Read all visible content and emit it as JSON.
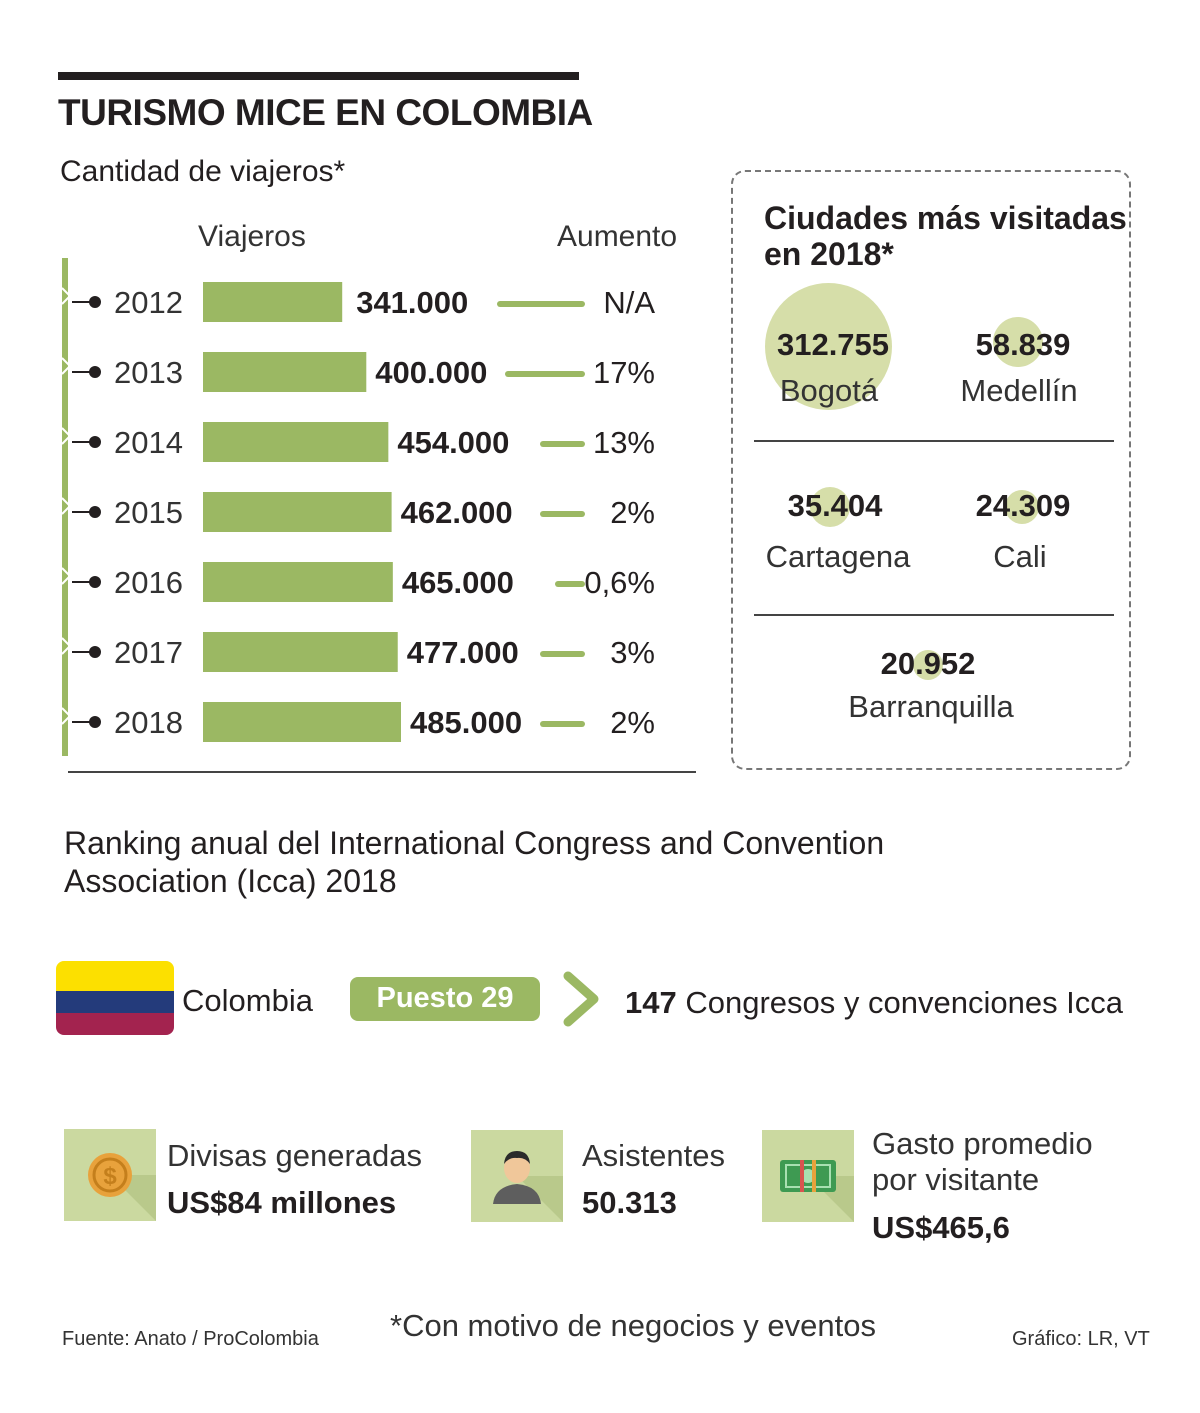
{
  "title": "TURISMO MICE EN COLOMBIA",
  "subtitle": "Cantidad de viajeros*",
  "colors": {
    "bar": "#9bb863",
    "bubble": "#d6dea9",
    "icon_bg": "#cbd9a0",
    "text": "#231f20"
  },
  "chart_data": {
    "type": "bar",
    "orientation": "horizontal",
    "title": "Cantidad de viajeros*",
    "value_header": "Viajeros",
    "change_header": "Aumento",
    "categories": [
      "2012",
      "2013",
      "2014",
      "2015",
      "2016",
      "2017",
      "2018"
    ],
    "values": [
      341000,
      400000,
      454000,
      462000,
      465000,
      477000,
      485000
    ],
    "value_labels": [
      "341.000",
      "400.000",
      "454.000",
      "462.000",
      "465.000",
      "477.000",
      "485.000"
    ],
    "changes": [
      "N/A",
      "17%",
      "13%",
      "2%",
      "0,6%",
      "3%",
      "2%"
    ]
  },
  "cities": {
    "title_line1": "Ciudades más visitadas",
    "title_line2": "en 2018*",
    "items": [
      {
        "name": "Bogotá",
        "value": 312755,
        "label": "312.755"
      },
      {
        "name": "Medellín",
        "value": 58839,
        "label": "58.839"
      },
      {
        "name": "Cartagena",
        "value": 35404,
        "label": "35.404"
      },
      {
        "name": "Cali",
        "value": 24309,
        "label": "24.309"
      },
      {
        "name": "Barranquilla",
        "value": 20952,
        "label": "20.952"
      }
    ]
  },
  "ranking": {
    "title_line1": "Ranking anual del International Congress and Convention",
    "title_line2": "Association (Icca) 2018",
    "country": "Colombia",
    "position": "Puesto 29",
    "congress_count": "147",
    "congress_text": "Congresos y convenciones Icca"
  },
  "stats": [
    {
      "icon": "coin-icon",
      "label": "Divisas generadas",
      "value": "US$84 millones"
    },
    {
      "icon": "person-icon",
      "label": "Asistentes",
      "value": "50.313"
    },
    {
      "icon": "banknote-icon",
      "label_line1": "Gasto promedio",
      "label_line2": "por visitante",
      "value": "US$465,6"
    }
  ],
  "footnote": "*Con motivo de negocios y eventos",
  "source": "Fuente: Anato / ProColombia",
  "credit": "Gráfico: LR, VT"
}
